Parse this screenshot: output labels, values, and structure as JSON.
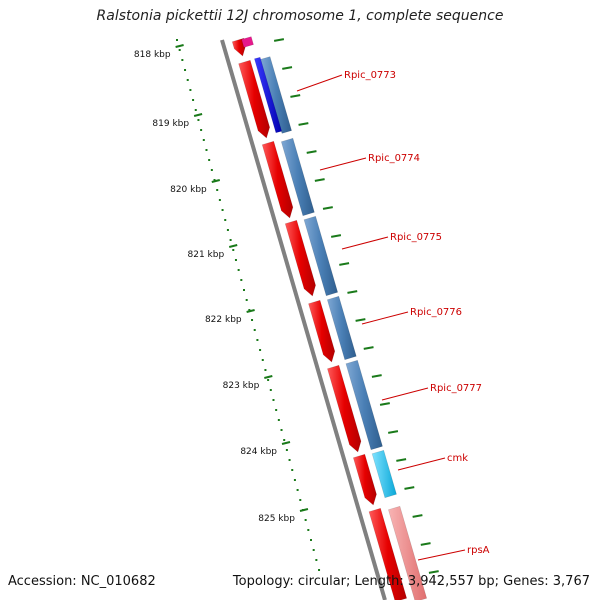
{
  "title": "Ralstonia pickettii 12J chromosome 1, complete sequence",
  "ticks": [
    "818 kbp",
    "819 kbp",
    "820 kbp",
    "821 kbp",
    "822 kbp",
    "823 kbp",
    "824 kbp",
    "825 kbp"
  ],
  "genes": [
    "Rpic_0773",
    "Rpic_0774",
    "Rpic_0775",
    "Rpic_0776",
    "Rpic_0777",
    "cmk",
    "rpsA"
  ],
  "footer": {
    "accession": "Accession: NC_010682",
    "summary": "Topology: circular; Length: 3,942,557 bp; Genes: 3,767"
  },
  "colors": {
    "backbone": "#808080",
    "cds_forward": "#e60000",
    "cds_reverse": "#4a7fb5",
    "highlight_blue": "#0000e6",
    "highlight_cyan": "#19c3f0",
    "rrna_pink": "#f08c8c",
    "top_magenta": "#e6198c",
    "tick_green": "#1a7a1a",
    "label_red": "#cc0000"
  }
}
